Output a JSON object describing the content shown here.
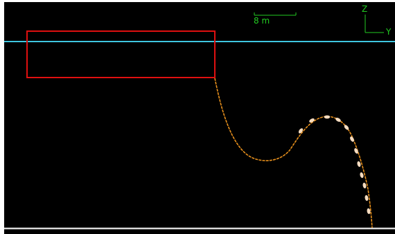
{
  "colors": {
    "background": "#000000",
    "water_surface": "#3ec6e0",
    "seabed": "#d8d8d8",
    "vessel_outline": "#e01010",
    "line": "#e8901c",
    "buoy": "#f6dcc0",
    "annotation": "#22cc22"
  },
  "scale_bar": {
    "label": "8 m"
  },
  "axes": {
    "z_label": "Z",
    "y_label": "Y"
  },
  "buoy_count": 12
}
